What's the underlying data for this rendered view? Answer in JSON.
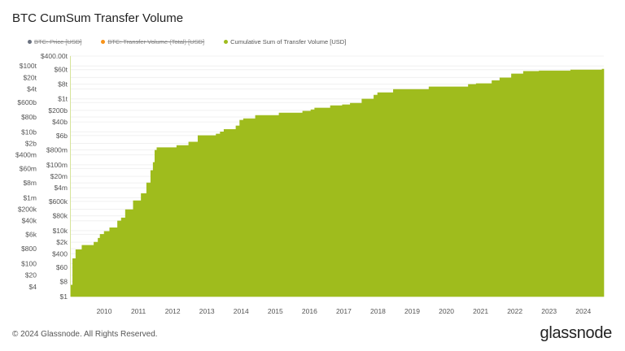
{
  "title": "BTC CumSum Transfer Volume",
  "legend": [
    {
      "label": "BTC: Price [USD]",
      "color": "#6b7280",
      "enabled": false
    },
    {
      "label": "BTC: Transfer Volume (Total) [USD]",
      "color": "#f7931a",
      "enabled": false
    },
    {
      "label": "Cumulative Sum of Transfer Volume [USD]",
      "color": "#9fbc1d",
      "enabled": true
    }
  ],
  "footer": {
    "copyright": "© 2024 Glassnode. All Rights Reserved.",
    "logo": "glassnode"
  },
  "chart_data": {
    "type": "area",
    "title": "BTC CumSum Transfer Volume",
    "series": [
      {
        "name": "Cumulative Sum of Transfer Volume [USD]",
        "color": "#9fbc1d",
        "x": [
          2009.03,
          2009.08,
          2009.17,
          2009.35,
          2009.7,
          2009.82,
          2009.88,
          2010.0,
          2010.16,
          2010.39,
          2010.5,
          2010.62,
          2010.85,
          2011.08,
          2011.24,
          2011.36,
          2011.43,
          2011.48,
          2011.54,
          2012.12,
          2012.47,
          2012.63,
          2012.74,
          2013.27,
          2013.39,
          2013.5,
          2013.85,
          2013.96,
          2014.07,
          2014.42,
          2015.11,
          2015.8,
          2016.04,
          2016.15,
          2016.61,
          2016.96,
          2017.19,
          2017.53,
          2017.88,
          2017.99,
          2018.45,
          2019.49,
          2020.64,
          2020.87,
          2021.33,
          2021.56,
          2021.9,
          2022.25,
          2022.71,
          2023.63,
          2024.55
        ],
        "y": [
          5,
          200,
          700,
          1300,
          2000,
          3500,
          6000,
          9000,
          15000,
          39000,
          60000,
          190000,
          660000,
          1800000.0,
          8000000.0,
          45000000.0,
          140000000.0,
          760000000.0,
          1100000000.0,
          1500000000.0,
          2400000000.0,
          2400000000.0,
          5900000000.0,
          7400000000.0,
          10000000000.0,
          14000000000.0,
          23000000000.0,
          51000000000.0,
          63000000000.0,
          100000000000.0,
          140000000000.0,
          180000000000.0,
          220000000000.0,
          280000000000.0,
          390000000000.0,
          440000000000.0,
          550000000000.0,
          980000000000.0,
          1700000000000.0,
          2400000000000.0,
          3800000000000.0,
          5400000000000.0,
          7600000000000.0,
          8500000000000.0,
          13000000000000.0,
          19000000000000.0,
          33000000000000.0,
          47000000000000.0,
          51000000000000.0,
          58000000000000.0,
          65000000000000.0
        ]
      }
    ],
    "xlim": [
      2009.0,
      2024.6
    ],
    "ylim": [
      1,
      400000000000000.0
    ],
    "yscale": "log",
    "xticks": [
      2010,
      2011,
      2012,
      2013,
      2014,
      2015,
      2016,
      2017,
      2018,
      2019,
      2020,
      2021,
      2022,
      2023,
      2024
    ],
    "yticks": [
      {
        "label": "$400.00t",
        "value": 400000000000000.0
      },
      {
        "label": "$100t",
        "value": 100000000000000.0
      },
      {
        "label": "$60t",
        "value": 60000000000000.0
      },
      {
        "label": "$20t",
        "value": 20000000000000.0
      },
      {
        "label": "$8t",
        "value": 8000000000000.0
      },
      {
        "label": "$4t",
        "value": 4000000000000.0
      },
      {
        "label": "$1t",
        "value": 1000000000000.0
      },
      {
        "label": "$600b",
        "value": 600000000000.0
      },
      {
        "label": "$200b",
        "value": 200000000000.0
      },
      {
        "label": "$80b",
        "value": 80000000000.0
      },
      {
        "label": "$40b",
        "value": 40000000000.0
      },
      {
        "label": "$10b",
        "value": 10000000000.0
      },
      {
        "label": "$6b",
        "value": 6000000000.0
      },
      {
        "label": "$2b",
        "value": 2000000000.0
      },
      {
        "label": "$800m",
        "value": 800000000.0
      },
      {
        "label": "$400m",
        "value": 400000000.0
      },
      {
        "label": "$100m",
        "value": 100000000.0
      },
      {
        "label": "$60m",
        "value": 60000000.0
      },
      {
        "label": "$20m",
        "value": 20000000.0
      },
      {
        "label": "$8m",
        "value": 8000000.0
      },
      {
        "label": "$4m",
        "value": 4000000.0
      },
      {
        "label": "$1m",
        "value": 1000000.0
      },
      {
        "label": "$600k",
        "value": 600000.0
      },
      {
        "label": "$200k",
        "value": 200000.0
      },
      {
        "label": "$80k",
        "value": 80000.0
      },
      {
        "label": "$40k",
        "value": 40000.0
      },
      {
        "label": "$10k",
        "value": 10000.0
      },
      {
        "label": "$6k",
        "value": 6000.0
      },
      {
        "label": "$2k",
        "value": 2000.0
      },
      {
        "label": "$800",
        "value": 800
      },
      {
        "label": "$400",
        "value": 400
      },
      {
        "label": "$100",
        "value": 100
      },
      {
        "label": "$60",
        "value": 60
      },
      {
        "label": "$20",
        "value": 20
      },
      {
        "label": "$8",
        "value": 8
      },
      {
        "label": "$4",
        "value": 4
      },
      {
        "label": "$1",
        "value": 1
      }
    ],
    "grid": true,
    "legend_position": "top-left"
  }
}
